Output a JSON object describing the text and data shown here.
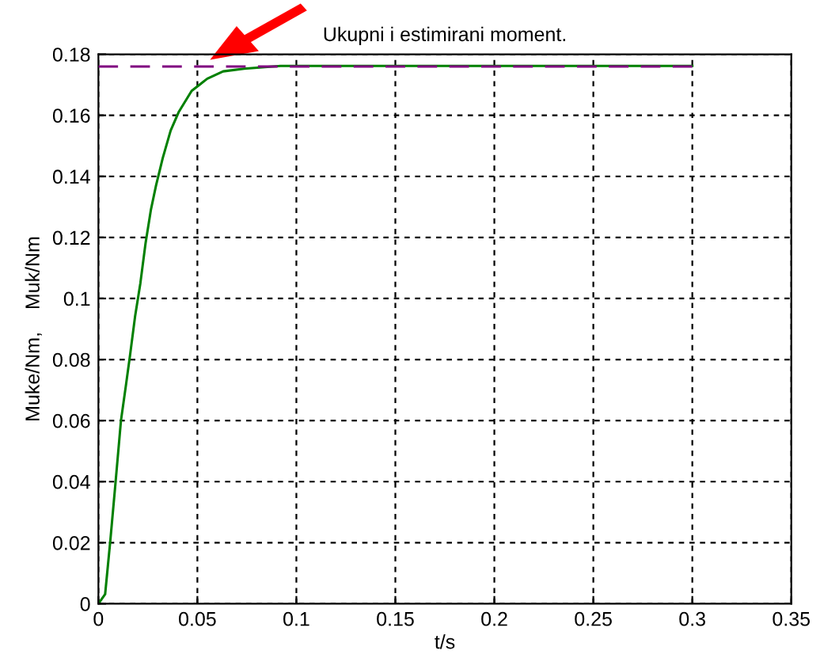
{
  "chart_data": {
    "type": "line",
    "title": "Ukupni i estimirani moment.",
    "xlabel": "t/s",
    "ylabel": "Muke/Nm,    Muk/Nm",
    "series": [
      {
        "color": "#008000",
        "line_style": "solid",
        "x": [
          0,
          0.0034,
          0.0061,
          0.0087,
          0.0114,
          0.014,
          0.0159,
          0.0185,
          0.0212,
          0.0238,
          0.0265,
          0.0291,
          0.0325,
          0.0365,
          0.0405,
          0.0471,
          0.055,
          0.063,
          0.0736,
          0.092,
          0.3
        ],
        "values": [
          0,
          0.0031,
          0.0212,
          0.04,
          0.06,
          0.072,
          0.081,
          0.094,
          0.105,
          0.118,
          0.129,
          0.137,
          0.146,
          0.155,
          0.161,
          0.168,
          0.172,
          0.1744,
          0.1753,
          0.1762,
          0.1762
        ]
      },
      {
        "color": "#800080",
        "line_style": "dashed",
        "x": [
          0,
          0.3
        ],
        "values": [
          0.176,
          0.176
        ]
      }
    ],
    "xlim": [
      0,
      0.35
    ],
    "xticks": [
      0,
      0.05,
      0.1,
      0.15,
      0.2,
      0.25,
      0.3,
      0.35
    ],
    "ylim": [
      0,
      0.18
    ],
    "yticks": [
      0,
      0.02,
      0.04,
      0.06,
      0.08,
      0.1,
      0.12,
      0.14,
      0.16,
      0.18
    ],
    "grid": true
  }
}
